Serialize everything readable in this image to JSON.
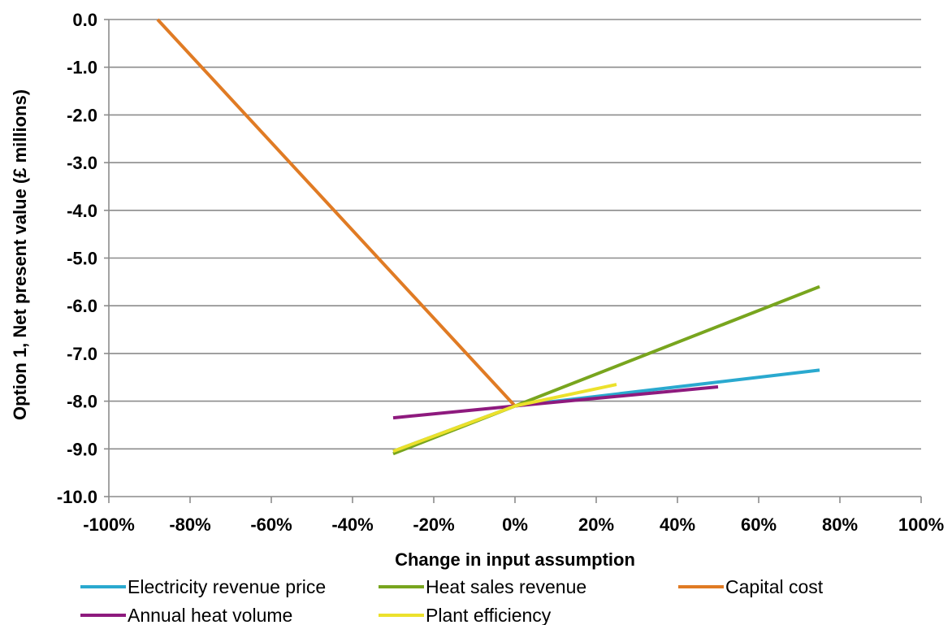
{
  "chart_data": {
    "type": "line",
    "title": "",
    "xlabel": "Change in input assumption",
    "ylabel": "Option 1, Net present value (£ millions)",
    "xlim": [
      -100,
      100
    ],
    "ylim": [
      -10,
      0
    ],
    "x_ticks": [
      -100,
      -80,
      -60,
      -40,
      -20,
      0,
      20,
      40,
      60,
      80,
      100
    ],
    "x_tick_labels": [
      "-100%",
      "-80%",
      "-60%",
      "-40%",
      "-20%",
      "0%",
      "20%",
      "40%",
      "60%",
      "80%",
      "100%"
    ],
    "y_ticks": [
      0,
      -1,
      -2,
      -3,
      -4,
      -5,
      -6,
      -7,
      -8,
      -9,
      -10
    ],
    "y_tick_labels": [
      "0.0",
      "-1.0",
      "-2.0",
      "-3.0",
      "-4.0",
      "-5.0",
      "-6.0",
      "-7.0",
      "-8.0",
      "-9.0",
      "-10.0"
    ],
    "grid": "horizontal",
    "legend_position": "bottom",
    "series": [
      {
        "name": "Electricity revenue price",
        "color": "#2aa9cf",
        "x": [
          -30,
          0,
          75
        ],
        "y": [
          -9.05,
          -8.1,
          -7.35
        ]
      },
      {
        "name": "Heat sales revenue",
        "color": "#78a51e",
        "x": [
          -30,
          0,
          75
        ],
        "y": [
          -9.1,
          -8.1,
          -5.6
        ]
      },
      {
        "name": "Capital cost",
        "color": "#e07b24",
        "x": [
          -88,
          0
        ],
        "y": [
          0.0,
          -8.1
        ]
      },
      {
        "name": "Annual heat volume",
        "color": "#8e1a7e",
        "x": [
          -30,
          0,
          50
        ],
        "y": [
          -8.35,
          -8.1,
          -7.7
        ]
      },
      {
        "name": "Plant efficiency",
        "color": "#ece12c",
        "x": [
          -30,
          0,
          25
        ],
        "y": [
          -9.05,
          -8.1,
          -7.65
        ]
      }
    ]
  }
}
